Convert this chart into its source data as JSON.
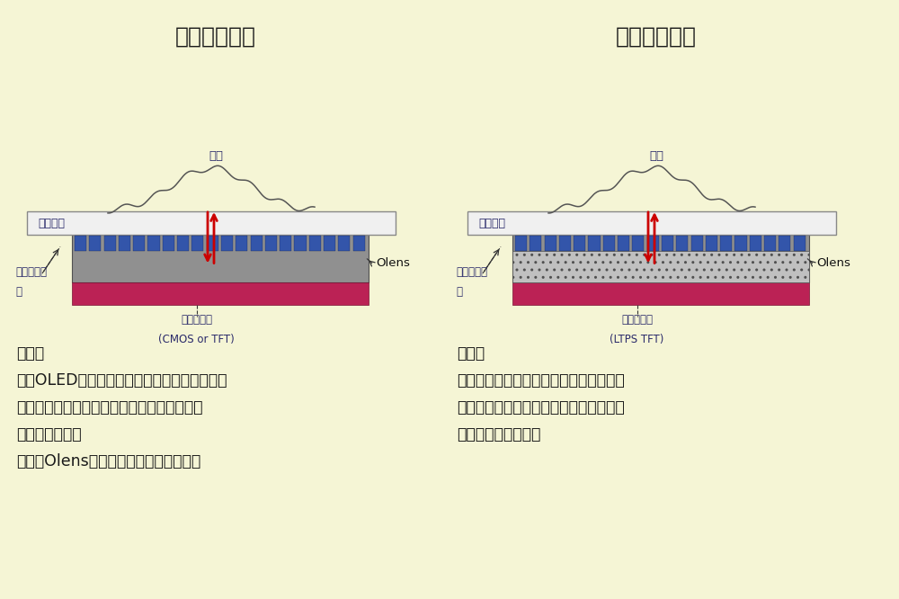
{
  "bg_color": "#f5f5d5",
  "title_left": "光学指纹模组",
  "title_right": "超声指纹模组",
  "title_color": "#1a1a1a",
  "title_fontsize": 18,
  "label_color": "#2a2a6a",
  "desc_color": "#1a1a1a",
  "desc_fontsize": 12.5,
  "glass_color": "#e8e8e8",
  "glass_border": "#999999",
  "sensor_gray": "#909090",
  "sensor_pink": "#bb2255",
  "pixel_blue": "#3355aa",
  "arrow_color": "#cc0000",
  "finger_color": "#555555",
  "olens_color": "#111111",
  "dashed_color": "#333333",
  "left_desc_title": "原理：",
  "left_desc_line1": "使用OLED显示器的发光作为光源，光线在手指",
  "left_desc_line2": "表皮接触面产生反射光，图像传感器利用反射",
  "left_desc_line3": "光生成指纹图像",
  "left_desc_line4": "（使用Olens来防止散射光的信号串扰）",
  "right_desc_title": "原理：",
  "right_desc_line1": "利用压电材料产生超声波，超声波在手指",
  "right_desc_line2": "表皮接触面反射，图像传感器利用反射的",
  "right_desc_line3": "超声波生成指纹图像",
  "left_sensor_label1": "图像传感器",
  "left_sensor_label2": "(CMOS or TFT)",
  "right_sensor_label1": "图像传感器",
  "right_sensor_label2": "(LTPS TFT)",
  "cover_glass_label": "盖板玻璃",
  "touch_label1": "触摸板和屏",
  "touch_label2": "幕",
  "olens_label": "Olens",
  "finger_label": "手指"
}
